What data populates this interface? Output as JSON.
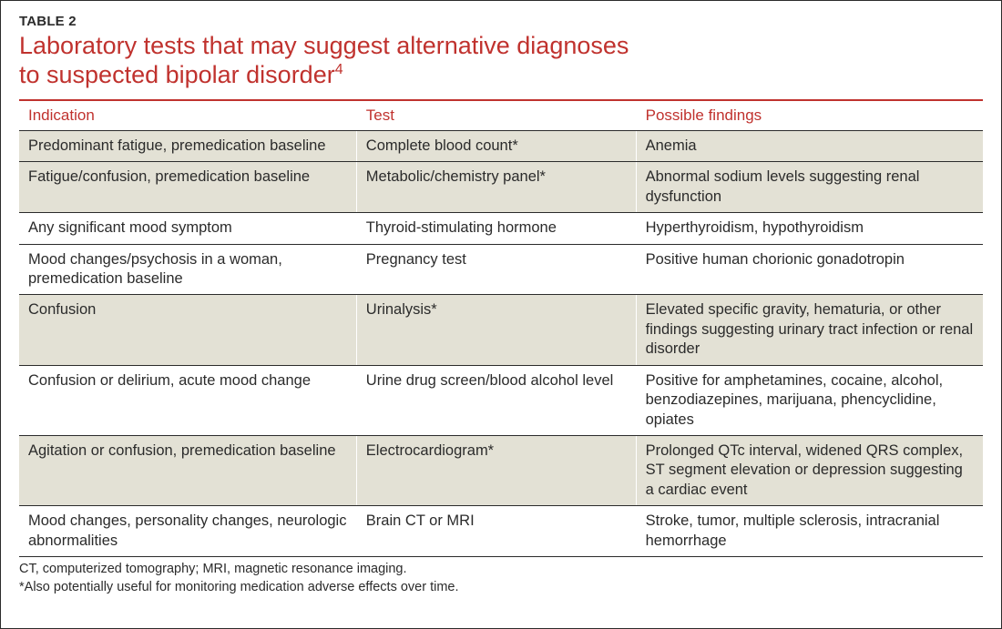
{
  "table_label": "TABLE 2",
  "title_line1": "Laboratory tests that may suggest alternative diagnoses",
  "title_line2": "to suspected bipolar disorder",
  "title_sup": "4",
  "columns": [
    "Indication",
    "Test",
    "Possible findings"
  ],
  "rows": [
    {
      "shaded": true,
      "cells": [
        "Predominant fatigue, premedication baseline",
        "Complete blood count*",
        "Anemia"
      ]
    },
    {
      "shaded": true,
      "cells": [
        "Fatigue/confusion, premedication baseline",
        "Metabolic/chemistry panel*",
        "Abnormal sodium levels suggesting renal dysfunction"
      ]
    },
    {
      "shaded": false,
      "cells": [
        "Any significant mood symptom",
        "Thyroid-stimulating hormone",
        "Hyperthyroidism, hypothyroidism"
      ]
    },
    {
      "shaded": false,
      "cells": [
        "Mood changes/psychosis in a woman, premedication baseline",
        "Pregnancy test",
        "Positive human chorionic gonadotropin"
      ]
    },
    {
      "shaded": true,
      "cells": [
        "Confusion",
        "Urinalysis*",
        "Elevated specific gravity, hematuria, or other findings suggesting urinary tract infection or renal disorder"
      ]
    },
    {
      "shaded": false,
      "cells": [
        "Confusion or delirium, acute mood change",
        "Urine drug screen/blood alcohol level",
        "Positive for amphetamines, cocaine, alcohol, benzodiazepines, marijuana, phencyclidine, opiates"
      ]
    },
    {
      "shaded": true,
      "cells": [
        "Agitation or confusion, premedication baseline",
        "Electrocardiogram*",
        "Prolonged QTc interval, widened QRS complex, ST segment elevation or depression suggesting a cardiac event"
      ]
    },
    {
      "shaded": false,
      "cells": [
        "Mood changes, personality changes, neurologic abnormalities",
        "Brain CT or MRI",
        "Stroke, tumor, multiple sclerosis, intracranial hemorrhage"
      ]
    }
  ],
  "footnote1": "CT, computerized tomography; MRI, magnetic resonance imaging.",
  "footnote2": "*Also potentially useful for monitoring medication adverse effects over time."
}
